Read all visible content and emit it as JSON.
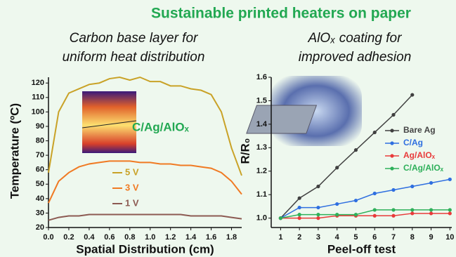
{
  "title": "Sustainable printed heaters on paper",
  "chart_data": [
    {
      "type": "line",
      "subtitle": [
        "Carbon base layer for",
        "uniform heat distribution"
      ],
      "xlabel": "Spatial Distribution (cm)",
      "ylabel": "Temperature (ºC)",
      "annotation": "C/Ag/AlOₓ",
      "x": [
        0,
        0.1,
        0.2,
        0.3,
        0.4,
        0.5,
        0.6,
        0.7,
        0.8,
        0.9,
        1.0,
        1.1,
        1.2,
        1.3,
        1.4,
        1.5,
        1.6,
        1.7,
        1.8,
        1.9
      ],
      "series": [
        {
          "name": "5 V",
          "color": "#c9a227",
          "values": [
            58,
            100,
            113,
            116,
            119,
            120,
            123,
            124,
            122,
            124,
            121,
            121,
            118,
            118,
            116,
            115,
            112,
            100,
            75,
            56
          ]
        },
        {
          "name": "3 V",
          "color": "#f07a23",
          "values": [
            37,
            52,
            58,
            62,
            64,
            65,
            66,
            66,
            66,
            65,
            65,
            64,
            64,
            63,
            63,
            62,
            61,
            58,
            52,
            43
          ]
        },
        {
          "name": "1 V",
          "color": "#8c5a52",
          "values": [
            25,
            27,
            28,
            28,
            29,
            29,
            29,
            29,
            29,
            29,
            29,
            29,
            29,
            29,
            28,
            28,
            28,
            28,
            27,
            26
          ]
        }
      ],
      "xlim": [
        0,
        1.9
      ],
      "xticks": [
        {
          "value": 0,
          "label": "0.0"
        },
        0.2,
        0.4,
        0.6,
        0.8,
        {
          "value": 1,
          "label": "1.0"
        },
        1.2,
        1.4,
        1.6,
        1.8
      ],
      "ylim": [
        20,
        124
      ],
      "yticks": [
        20,
        30,
        40,
        50,
        60,
        70,
        80,
        90,
        100,
        110,
        120
      ],
      "markers": false
    },
    {
      "type": "line",
      "subtitle": [
        "AlOₓ coating for",
        "improved adhesion"
      ],
      "xlabel": "Peel-off test",
      "ylabel": "R/R₀",
      "x": [
        1,
        2,
        3,
        4,
        5,
        6,
        7,
        8,
        9,
        10
      ],
      "series": [
        {
          "name": "Bare Ag",
          "color": "#404040",
          "values": [
            1.0,
            1.085,
            1.135,
            1.215,
            1.29,
            1.365,
            1.44,
            1.525,
            null,
            null
          ]
        },
        {
          "name": "C/Ag",
          "color": "#2f6fe0",
          "values": [
            1.0,
            1.045,
            1.045,
            1.06,
            1.075,
            1.105,
            1.12,
            1.135,
            1.15,
            1.165
          ]
        },
        {
          "name": "Ag/AlOₓ",
          "color": "#e83a3a",
          "values": [
            1.0,
            1.0,
            1.0,
            1.01,
            1.01,
            1.01,
            1.01,
            1.02,
            1.02,
            1.02
          ]
        },
        {
          "name": "C/Ag/AlOₓ",
          "color": "#2eb05a",
          "values": [
            1.0,
            1.015,
            1.015,
            1.015,
            1.015,
            1.035,
            1.035,
            1.035,
            1.035,
            1.035
          ]
        }
      ],
      "xlim": [
        0.5,
        10.1
      ],
      "xticks": [
        1,
        2,
        3,
        4,
        5,
        6,
        7,
        8,
        9,
        10
      ],
      "ylim": [
        0.96,
        1.6
      ],
      "yticks": [
        {
          "value": 1,
          "label": "1.0"
        },
        1.1,
        1.2,
        1.3,
        1.4,
        1.5,
        1.6
      ],
      "markers": true
    }
  ]
}
